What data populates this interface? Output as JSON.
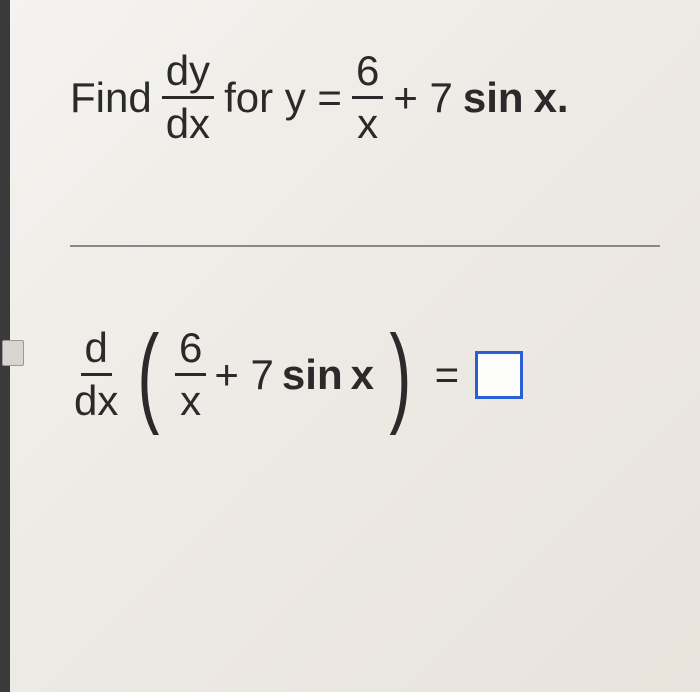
{
  "problem": {
    "prompt_word": "Find",
    "deriv_num": "dy",
    "deriv_den": "dx",
    "for_text": "for y =",
    "rhs_frac_num": "6",
    "rhs_frac_den": "x",
    "plus_text": "+ 7",
    "sin_text": "sin",
    "var_text": "x.",
    "text_color": "#2a2a2a",
    "fontsize": 42
  },
  "answer": {
    "d_num": "d",
    "d_den": "dx",
    "inner_frac_num": "6",
    "inner_frac_den": "x",
    "plus_text": "+ 7",
    "sin_text": "sin",
    "var_text": "x",
    "equals": "=",
    "box_border_color": "#2a5fd8",
    "box_bg": "#fdfdfb"
  },
  "divider_color": "#888888",
  "background_gradient": [
    "#f5f3f0",
    "#ede9e4",
    "#e8e3dc"
  ]
}
